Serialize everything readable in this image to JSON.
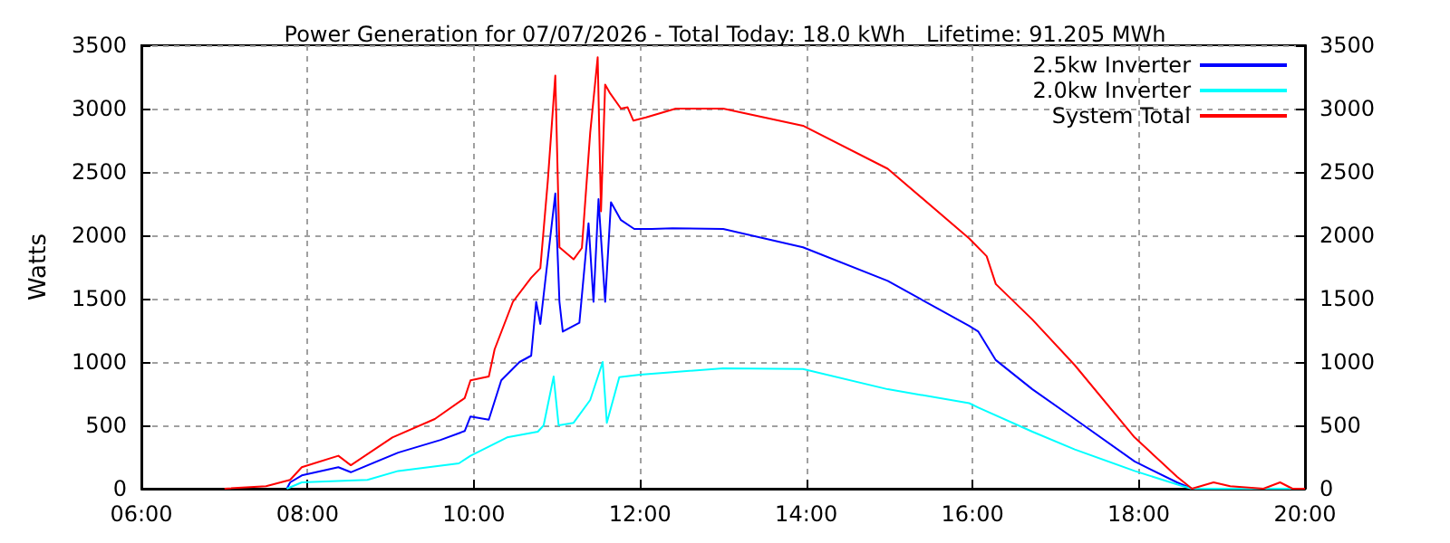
{
  "chart_data": {
    "type": "line",
    "title": "Power Generation for 07/07/2026 - Total Today: 18.0 kWh   Lifetime: 91.205 MWh",
    "ylabel": "Watts",
    "xlim": [
      6,
      20
    ],
    "xticks": [
      {
        "value": 6,
        "label": "06:00"
      },
      {
        "value": 8,
        "label": "08:00"
      },
      {
        "value": 10,
        "label": "10:00"
      },
      {
        "value": 12,
        "label": "12:00"
      },
      {
        "value": 14,
        "label": "14:00"
      },
      {
        "value": 16,
        "label": "16:00"
      },
      {
        "value": 18,
        "label": "18:00"
      },
      {
        "value": 20,
        "label": "20:00"
      }
    ],
    "ylim": [
      0,
      3500
    ],
    "yticks": [
      0,
      500,
      1000,
      1500,
      2000,
      2500,
      3000,
      3500
    ],
    "y2lim": [
      0,
      3500
    ],
    "y2ticks": [
      0,
      500,
      1000,
      1500,
      2000,
      2500,
      3000,
      3500
    ],
    "grid": true,
    "legend": "top right",
    "marker": "none",
    "line_style": "solid",
    "series": [
      {
        "name": "2.5kw Inverter",
        "color": "#0000ff",
        "x": [
          7.75,
          7.79,
          7.93,
          8.37,
          8.52,
          9.09,
          9.6,
          9.89,
          9.96,
          10.18,
          10.33,
          10.55,
          10.69,
          10.75,
          10.8,
          10.98,
          11.03,
          11.07,
          11.27,
          11.38,
          11.44,
          11.5,
          11.58,
          11.65,
          11.77,
          11.93,
          12.14,
          12.39,
          13.0,
          13.96,
          14.98,
          15.96,
          16.07,
          16.28,
          16.72,
          17.23,
          17.95,
          18.46,
          18.64,
          20.0
        ],
        "values": [
          0,
          50,
          105,
          170,
          130,
          285,
          385,
          455,
          570,
          545,
          855,
          1000,
          1050,
          1475,
          1300,
          2330,
          1475,
          1240,
          1310,
          2095,
          1475,
          2285,
          1475,
          2260,
          2120,
          2050,
          2050,
          2055,
          2050,
          1905,
          1640,
          1285,
          1240,
          1015,
          785,
          550,
          215,
          50,
          0,
          0
        ]
      },
      {
        "name": "2.0kw Inverter",
        "color": "#00ffff",
        "x": [
          7.75,
          7.93,
          8.72,
          9.09,
          9.82,
          9.96,
          10.4,
          10.77,
          10.84,
          10.96,
          11.02,
          11.2,
          11.4,
          11.55,
          11.6,
          11.75,
          12.0,
          12.39,
          13.0,
          13.96,
          14.98,
          15.96,
          16.07,
          16.72,
          17.23,
          17.95,
          18.53,
          18.64,
          20.0
        ],
        "values": [
          0,
          50,
          70,
          140,
          200,
          260,
          405,
          450,
          500,
          885,
          500,
          520,
          700,
          1000,
          520,
          880,
          900,
          920,
          950,
          945,
          785,
          675,
          640,
          450,
          310,
          140,
          20,
          0,
          0
        ]
      },
      {
        "name": "System Total",
        "color": "#ff0000",
        "x": [
          7.0,
          7.5,
          7.79,
          7.93,
          8.37,
          8.52,
          9.02,
          9.53,
          9.89,
          9.96,
          10.18,
          10.25,
          10.47,
          10.69,
          10.8,
          10.89,
          10.98,
          11.03,
          11.2,
          11.3,
          11.4,
          11.49,
          11.53,
          11.58,
          11.64,
          11.77,
          11.85,
          11.92,
          12.07,
          12.43,
          13.0,
          13.96,
          14.98,
          15.96,
          16.17,
          16.28,
          16.72,
          17.23,
          17.95,
          18.46,
          18.64,
          18.9,
          19.1,
          19.5,
          19.7,
          19.85,
          20.0
        ],
        "values": [
          0,
          20,
          70,
          170,
          260,
          185,
          405,
          550,
          715,
          855,
          885,
          1100,
          1475,
          1665,
          1740,
          2430,
          3260,
          1905,
          1810,
          1900,
          2810,
          3405,
          2190,
          3190,
          3120,
          3000,
          3010,
          2905,
          2930,
          3000,
          3000,
          2865,
          2525,
          1975,
          1835,
          1615,
          1335,
          975,
          405,
          95,
          0,
          50,
          20,
          0,
          50,
          0,
          0
        ]
      }
    ]
  }
}
